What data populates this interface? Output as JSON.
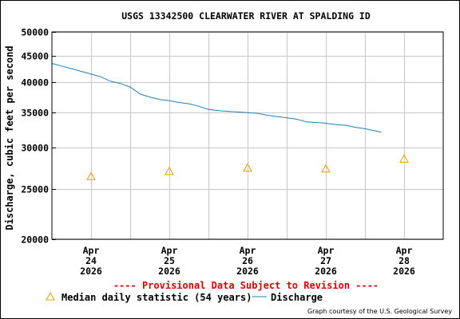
{
  "chart_data": {
    "type": "line",
    "title": "USGS 13342500 CLEARWATER RIVER AT SPALDING ID",
    "ylabel": "Discharge, cubic feet per second",
    "xlabel": "",
    "yscale": "log",
    "ylim": [
      20000,
      50000
    ],
    "y_ticks": [
      "20000",
      "25000",
      "30000",
      "35000",
      "40000",
      "45000",
      "50000"
    ],
    "y_tick_values": [
      20000,
      25000,
      30000,
      35000,
      40000,
      45000,
      50000
    ],
    "xlim": [
      "2026-04-23T12:00",
      "2026-04-28T12:00"
    ],
    "x_ticks": [
      {
        "month": "Apr",
        "day": "24",
        "year": "2026",
        "x": "2026-04-24T00:00"
      },
      {
        "month": "Apr",
        "day": "25",
        "year": "2026",
        "x": "2026-04-25T00:00"
      },
      {
        "month": "Apr",
        "day": "26",
        "year": "2026",
        "x": "2026-04-26T00:00"
      },
      {
        "month": "Apr",
        "day": "27",
        "year": "2026",
        "x": "2026-04-27T00:00"
      },
      {
        "month": "Apr",
        "day": "28",
        "year": "2026",
        "x": "2026-04-28T00:00"
      }
    ],
    "grid": true,
    "colors": {
      "discharge": "#1f7fb5",
      "median": "#e6a000",
      "provisional": "#dd0000",
      "grid": "#c8c8c8"
    },
    "series": [
      {
        "name": "Discharge",
        "style": "line",
        "x": [
          "2026-04-23T12:00",
          "2026-04-23T15:00",
          "2026-04-23T18:00",
          "2026-04-23T21:00",
          "2026-04-24T00:00",
          "2026-04-24T03:00",
          "2026-04-24T06:00",
          "2026-04-24T09:00",
          "2026-04-24T12:00",
          "2026-04-24T15:00",
          "2026-04-24T18:00",
          "2026-04-24T21:00",
          "2026-04-25T00:00",
          "2026-04-25T03:00",
          "2026-04-25T06:00",
          "2026-04-25T09:00",
          "2026-04-25T12:00",
          "2026-04-25T15:00",
          "2026-04-25T18:00",
          "2026-04-25T21:00",
          "2026-04-26T00:00",
          "2026-04-26T03:00",
          "2026-04-26T06:00",
          "2026-04-26T09:00",
          "2026-04-26T12:00",
          "2026-04-26T15:00",
          "2026-04-26T18:00",
          "2026-04-26T21:00",
          "2026-04-27T00:00",
          "2026-04-27T03:00",
          "2026-04-27T06:00",
          "2026-04-27T09:00",
          "2026-04-27T12:00",
          "2026-04-27T15:00",
          "2026-04-27T17:00"
        ],
        "values": [
          43500,
          43000,
          42500,
          42000,
          41500,
          41000,
          40200,
          39800,
          39200,
          38000,
          37500,
          37100,
          36900,
          36600,
          36400,
          36000,
          35500,
          35300,
          35200,
          35100,
          35000,
          34900,
          34600,
          34400,
          34200,
          34000,
          33600,
          33500,
          33400,
          33200,
          33100,
          32800,
          32600,
          32300,
          32100
        ]
      },
      {
        "name": "Median daily statistic (54 years)",
        "style": "marker",
        "x": [
          "2026-04-24T00:00",
          "2026-04-25T00:00",
          "2026-04-26T00:00",
          "2026-04-27T00:00",
          "2026-04-28T00:00"
        ],
        "values": [
          26400,
          27000,
          27400,
          27300,
          28500
        ]
      }
    ],
    "provisional_note": "---- Provisional Data Subject to Revision ----",
    "credit": "Graph courtesy of the U.S. Geological Survey"
  }
}
